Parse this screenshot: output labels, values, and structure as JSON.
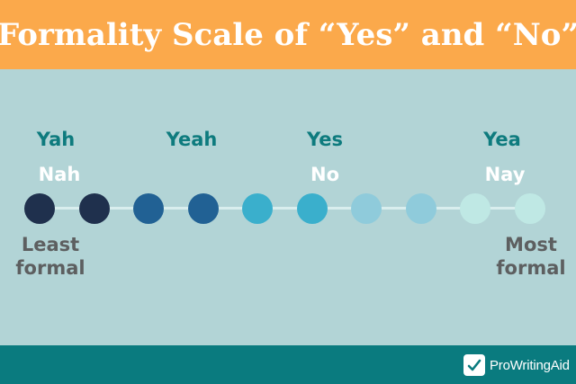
{
  "title": "Formality Scale of “Yes” and “No”",
  "yes_words": [
    {
      "name": "yes-word-yah",
      "text": "Yah"
    },
    {
      "name": "yes-word-yeah",
      "text": "Yeah"
    },
    {
      "name": "yes-word-yes",
      "text": "Yes"
    },
    {
      "name": "yes-word-yea",
      "text": "Yea"
    }
  ],
  "no_words": [
    {
      "name": "no-word-nah",
      "text": "Nah"
    },
    {
      "name": "no-word-no",
      "text": "No"
    },
    {
      "name": "no-word-nay",
      "text": "Nay"
    }
  ],
  "scale": {
    "dot_colors": [
      "#1f304d",
      "#1f304d",
      "#216194",
      "#216194",
      "#3aafcc",
      "#3aafcc",
      "#8fcbdb",
      "#8fcbdb",
      "#bfe8e4",
      "#bfe8e4"
    ],
    "track_color": "#d9eeee"
  },
  "labels": {
    "least": "Least\nformal",
    "most": "Most\nformal"
  },
  "footer": {
    "brand": "ProWritingAid",
    "logo_icon": "pencil-check-icon"
  }
}
